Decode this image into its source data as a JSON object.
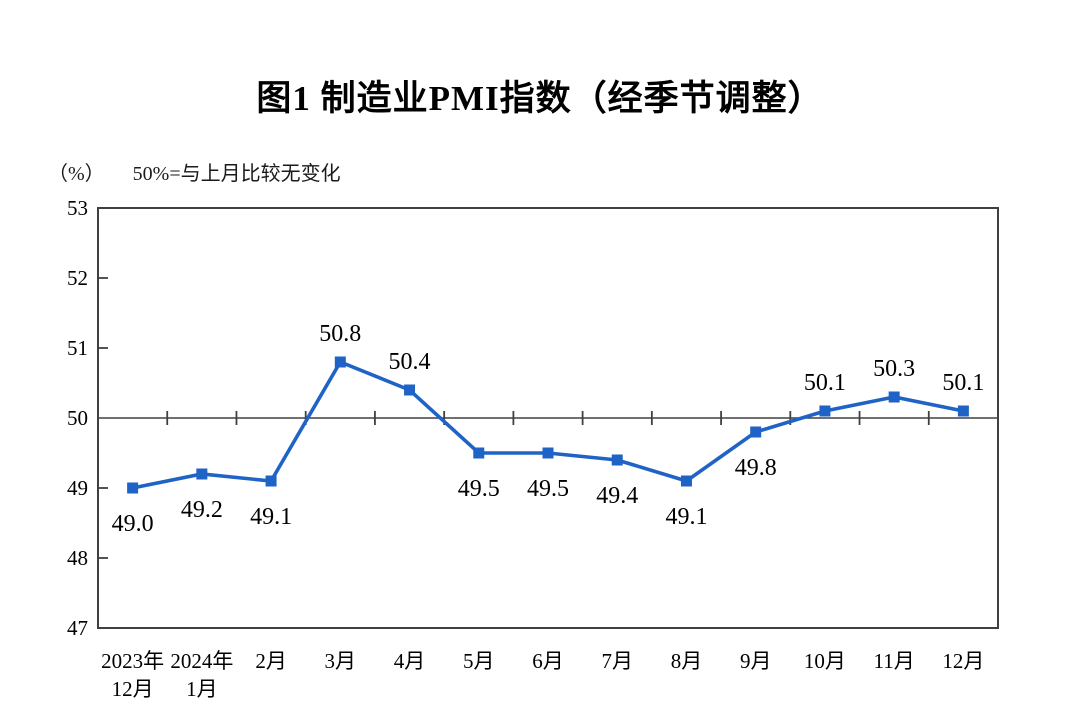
{
  "chart": {
    "title": "图1  制造业PMI指数（经季节调整）",
    "unit_label": "（%）",
    "reference_note": "50%=与上月比较无变化"
  },
  "chart_data": {
    "type": "line",
    "title": "图1  制造业PMI指数（经季节调整）",
    "ylabel": "（%）",
    "annotation": "50%=与上月比较无变化",
    "categories": [
      [
        "2023年",
        "12月"
      ],
      [
        "2024年",
        "1月"
      ],
      [
        "2月"
      ],
      [
        "3月"
      ],
      [
        "4月"
      ],
      [
        "5月"
      ],
      [
        "6月"
      ],
      [
        "7月"
      ],
      [
        "8月"
      ],
      [
        "9月"
      ],
      [
        "10月"
      ],
      [
        "11月"
      ],
      [
        "12月"
      ]
    ],
    "values": [
      49.0,
      49.2,
      49.1,
      50.8,
      50.4,
      49.5,
      49.5,
      49.4,
      49.1,
      49.8,
      50.1,
      50.3,
      50.1
    ],
    "value_labels": [
      "49.0",
      "49.2",
      "49.1",
      "50.8",
      "50.4",
      "49.5",
      "49.5",
      "49.4",
      "49.1",
      "49.8",
      "50.1",
      "50.3",
      "50.1"
    ],
    "ylim": [
      47,
      53
    ],
    "yticks": [
      53,
      52,
      51,
      50,
      49,
      48,
      47
    ],
    "reference_line_y": 50,
    "grid": "reference-line-only",
    "legend": "none",
    "colors": {
      "series_line": "#1f63c6",
      "marker": "#1f63c6",
      "axis_border": "#404040",
      "reference_line": "#404040",
      "text": "#000000"
    }
  }
}
